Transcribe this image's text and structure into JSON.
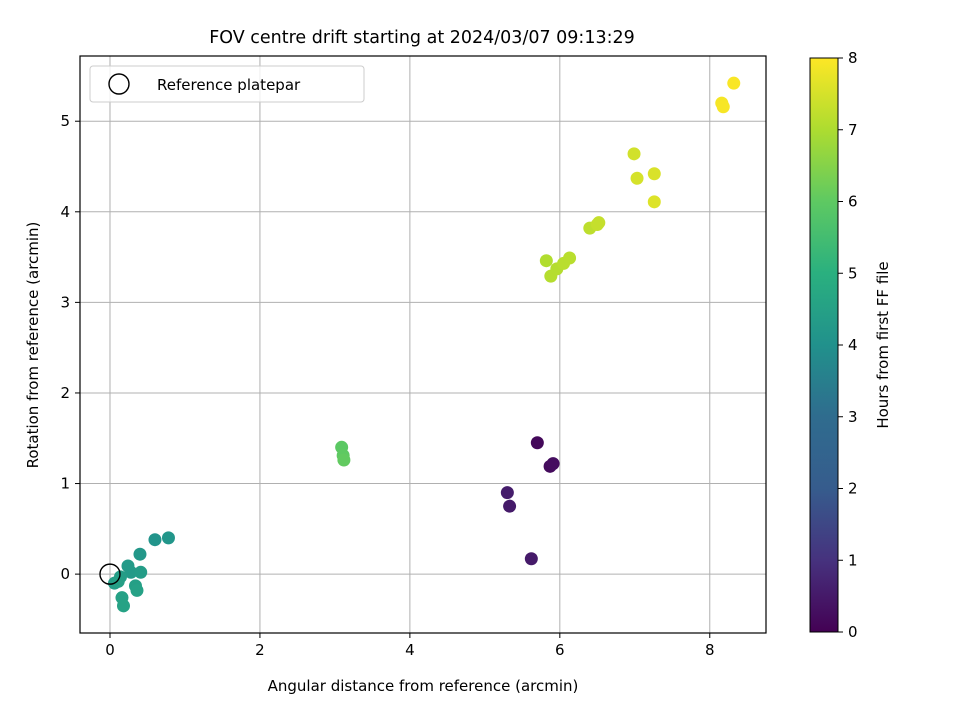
{
  "chart_data": {
    "type": "scatter",
    "title": "FOV centre drift starting at 2024/03/07 09:13:29",
    "xlabel": "Angular distance from reference (arcmin)",
    "ylabel": "Rotation from reference (arcmin)",
    "xlim": [
      -0.4,
      8.75
    ],
    "ylim": [
      -0.65,
      5.72
    ],
    "xticks": [
      0,
      2,
      4,
      6,
      8
    ],
    "yticks": [
      0,
      1,
      2,
      3,
      4,
      5
    ],
    "grid": true,
    "legend": {
      "placement": "upper-left",
      "entries": [
        "Reference platepar"
      ]
    },
    "reference_point": {
      "x": 0,
      "y": 0,
      "label": "Reference platepar"
    },
    "colorbar": {
      "label": "Hours from first FF file",
      "colormap": "viridis",
      "range": [
        0,
        8
      ],
      "ticks": [
        0,
        1,
        2,
        3,
        4,
        5,
        6,
        7,
        8
      ]
    },
    "points": [
      {
        "x": 5.62,
        "y": 0.17,
        "c": 0.5
      },
      {
        "x": 5.3,
        "y": 0.9,
        "c": 0.55
      },
      {
        "x": 5.33,
        "y": 0.75,
        "c": 0.5
      },
      {
        "x": 5.7,
        "y": 1.45,
        "c": 0.15
      },
      {
        "x": 5.87,
        "y": 1.19,
        "c": 0.2
      },
      {
        "x": 5.91,
        "y": 1.22,
        "c": 0.25
      },
      {
        "x": 0.6,
        "y": 0.38,
        "c": 4.1
      },
      {
        "x": 0.78,
        "y": 0.4,
        "c": 4.15
      },
      {
        "x": 0.4,
        "y": 0.22,
        "c": 4.2
      },
      {
        "x": 0.24,
        "y": 0.09,
        "c": 4.3
      },
      {
        "x": 0.28,
        "y": 0.02,
        "c": 4.3
      },
      {
        "x": 0.41,
        "y": 0.02,
        "c": 4.35
      },
      {
        "x": 0.14,
        "y": -0.03,
        "c": 4.4
      },
      {
        "x": 0.06,
        "y": -0.1,
        "c": 4.4
      },
      {
        "x": 0.11,
        "y": -0.08,
        "c": 4.45
      },
      {
        "x": 0.34,
        "y": -0.13,
        "c": 4.45
      },
      {
        "x": 0.36,
        "y": -0.18,
        "c": 4.5
      },
      {
        "x": 0.16,
        "y": -0.26,
        "c": 4.5
      },
      {
        "x": 0.18,
        "y": -0.35,
        "c": 4.55
      },
      {
        "x": 3.09,
        "y": 1.4,
        "c": 5.95
      },
      {
        "x": 3.11,
        "y": 1.31,
        "c": 6.0
      },
      {
        "x": 3.12,
        "y": 1.26,
        "c": 6.05
      },
      {
        "x": 5.82,
        "y": 3.46,
        "c": 7.05
      },
      {
        "x": 5.88,
        "y": 3.29,
        "c": 7.1
      },
      {
        "x": 5.96,
        "y": 3.37,
        "c": 7.1
      },
      {
        "x": 6.05,
        "y": 3.43,
        "c": 7.15
      },
      {
        "x": 6.13,
        "y": 3.49,
        "c": 7.15
      },
      {
        "x": 6.4,
        "y": 3.82,
        "c": 7.2
      },
      {
        "x": 6.5,
        "y": 3.86,
        "c": 7.3
      },
      {
        "x": 6.52,
        "y": 3.88,
        "c": 7.3
      },
      {
        "x": 6.99,
        "y": 4.64,
        "c": 7.45
      },
      {
        "x": 7.03,
        "y": 4.37,
        "c": 7.5
      },
      {
        "x": 7.26,
        "y": 4.42,
        "c": 7.55
      },
      {
        "x": 7.26,
        "y": 4.11,
        "c": 7.6
      },
      {
        "x": 8.16,
        "y": 5.2,
        "c": 7.9
      },
      {
        "x": 8.18,
        "y": 5.16,
        "c": 7.92
      },
      {
        "x": 8.32,
        "y": 5.42,
        "c": 7.95
      }
    ]
  },
  "colors": {
    "grid": "#b0b0b0",
    "axes": "#000000",
    "viridis": [
      "#440154",
      "#46327e",
      "#365c8d",
      "#277f8e",
      "#1fa187",
      "#4ac16d",
      "#a0da39",
      "#fde725"
    ]
  }
}
